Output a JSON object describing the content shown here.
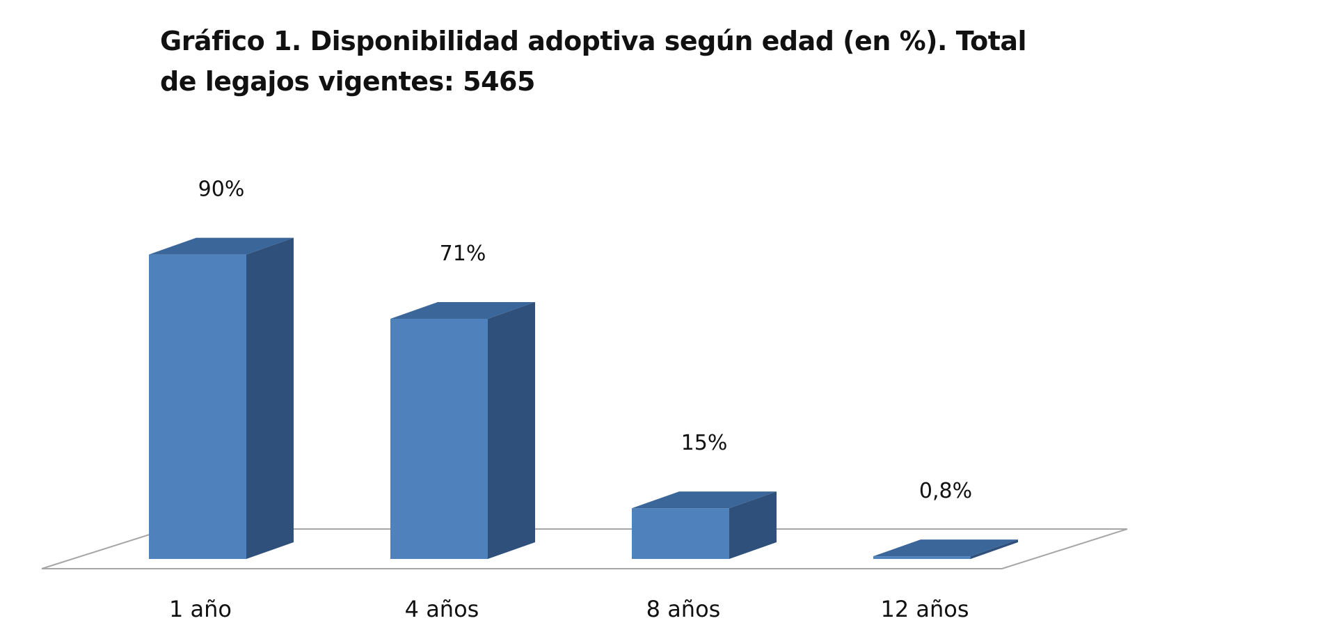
{
  "chart_data": {
    "type": "bar",
    "title": "Gráfico 1. Disponibilidad adoptiva según edad (en %). Total de legajos vigentes: 5465",
    "categories": [
      "1 año",
      "4 años",
      "8 años",
      "12 años"
    ],
    "values": [
      90,
      71,
      15,
      0.8
    ],
    "data_labels": [
      "90%",
      "71%",
      "15%",
      "0,8%"
    ],
    "ylim": [
      0,
      100
    ],
    "grid": false,
    "legend": "none",
    "style": "3d-column",
    "colors": {
      "front": "#4F81BD",
      "side": "#2F507A",
      "top": "#3B6699",
      "floor_stroke": "#A6A6A6"
    }
  }
}
